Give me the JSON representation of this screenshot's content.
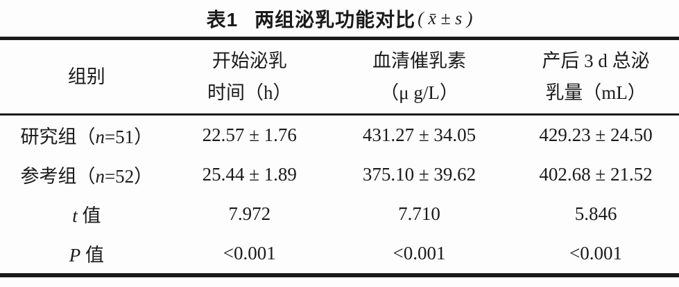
{
  "title": {
    "label": "表1",
    "text": "两组泌乳功能对比",
    "stat": "( x̄ ± s )"
  },
  "columns": [
    {
      "line1": "组别"
    },
    {
      "line1": "开始泌乳",
      "line2": "时间（h）"
    },
    {
      "line1": "血清催乳素",
      "line2": "（μ g/L）"
    },
    {
      "line1": "产后 3 d 总泌",
      "line2": "乳量（mL）"
    }
  ],
  "rows": [
    {
      "label": {
        "pre": "研究组（",
        "var": "n",
        "post": "=51）"
      },
      "values": [
        "22.57 ± 1.76",
        "431.27 ± 34.05",
        "429.23 ± 24.50"
      ]
    },
    {
      "label": {
        "pre": "参考组（",
        "var": "n",
        "post": "=52）"
      },
      "values": [
        "25.44 ± 1.89",
        "375.10 ± 39.62",
        "402.68 ± 21.52"
      ]
    },
    {
      "label": {
        "pre": "",
        "var": "t",
        "post": " 值"
      },
      "values": [
        "7.972",
        "7.710",
        "5.846"
      ]
    },
    {
      "label": {
        "pre": "",
        "var": "P",
        "post": " 值"
      },
      "values": [
        "<0.001",
        "<0.001",
        "<0.001"
      ]
    }
  ],
  "colors": {
    "text": "#1a1a1a",
    "rule": "#1a1a1a",
    "background": "#fdfdfd"
  }
}
